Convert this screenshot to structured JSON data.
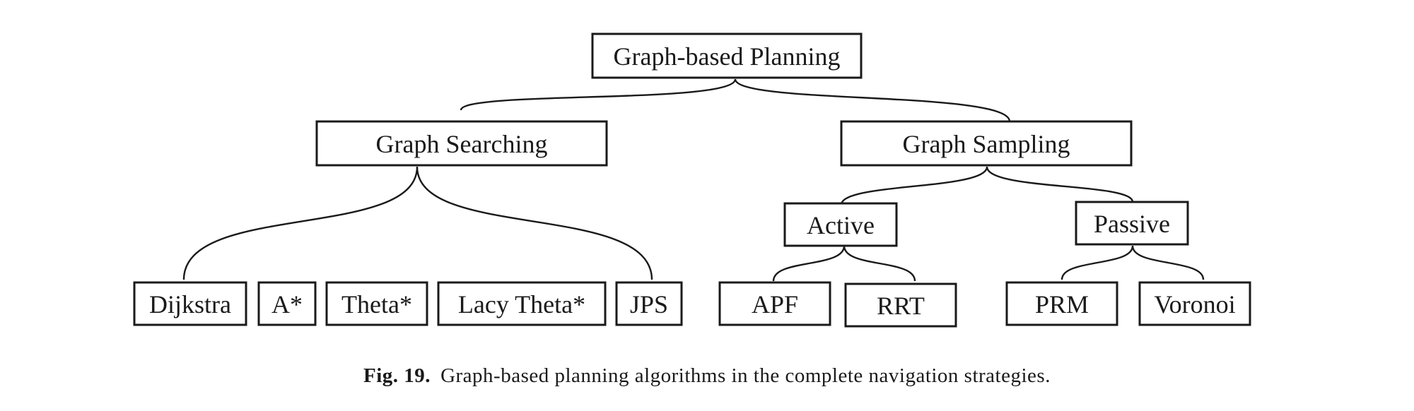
{
  "root": {
    "label": "Graph-based Planning"
  },
  "branches": {
    "searching": {
      "label": "Graph Searching",
      "children": [
        "Dijkstra",
        "A*",
        "Theta*",
        "Lacy Theta*",
        "JPS"
      ]
    },
    "sampling": {
      "label": "Graph Sampling",
      "groups": {
        "active": {
          "label": "Active",
          "children": [
            "APF",
            "RRT"
          ]
        },
        "passive": {
          "label": "Passive",
          "children": [
            "PRM",
            "Voronoi"
          ]
        }
      }
    }
  },
  "caption": {
    "label": "Fig. 19.",
    "text": "Graph-based planning algorithms in the complete navigation strategies."
  }
}
